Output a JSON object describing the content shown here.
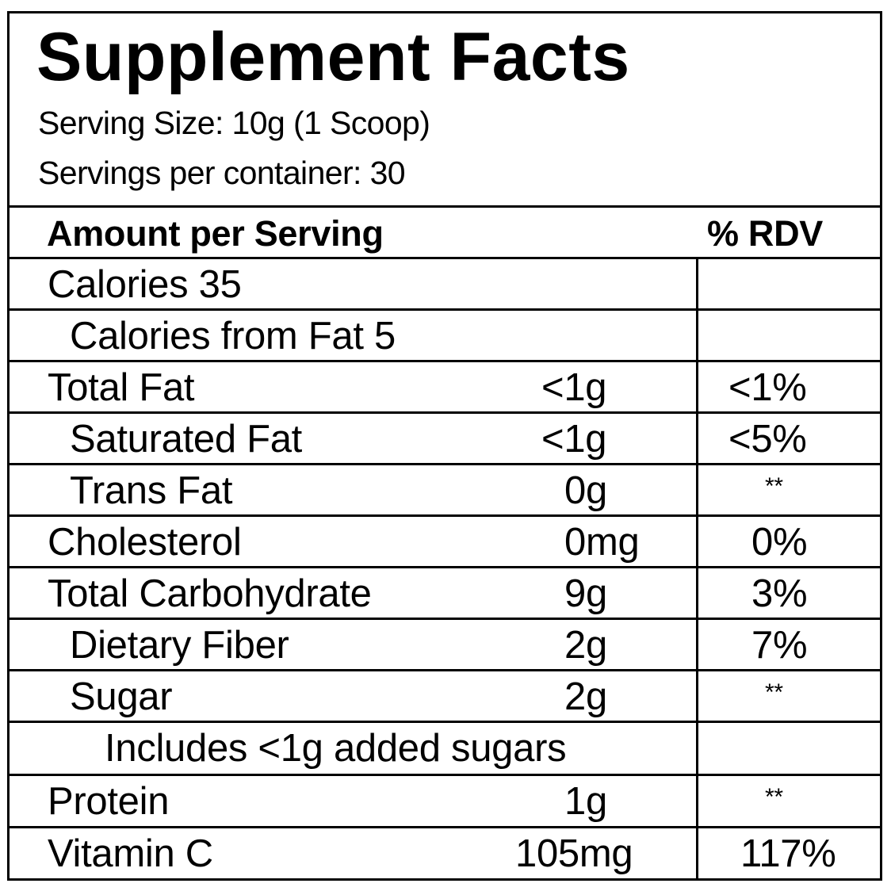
{
  "title": "Supplement Facts",
  "serving_size": "Serving Size: 10g (1 Scoop)",
  "servings_per_container": "Servings per container: 30",
  "header": {
    "amount": "Amount per Serving",
    "rdv": "% RDV"
  },
  "rows": [
    {
      "name": "Calories 35",
      "amount": "",
      "rdv": ""
    },
    {
      "name": "Calories from Fat 5",
      "amount": "",
      "rdv": ""
    },
    {
      "name": "Total Fat",
      "amount": "<1g",
      "rdv": "<1%"
    },
    {
      "name": "Saturated Fat",
      "amount": "<1g",
      "rdv": "<5%"
    },
    {
      "name": "Trans Fat",
      "amount": "0g",
      "rdv": "**"
    },
    {
      "name": "Cholesterol",
      "amount": "0mg",
      "rdv": "0%"
    },
    {
      "name": "Total Carbohydrate",
      "amount": "9g",
      "rdv": "3%"
    },
    {
      "name": "Dietary Fiber",
      "amount": "2g",
      "rdv": "7%"
    },
    {
      "name": "Sugar",
      "amount": "2g",
      "rdv": "**"
    },
    {
      "name": "Includes <1g added sugars",
      "amount": "",
      "rdv": ""
    },
    {
      "name": "Protein",
      "amount": "1g",
      "rdv": "**"
    },
    {
      "name": "Vitamin C",
      "amount": "105mg",
      "rdv": "117%"
    }
  ]
}
